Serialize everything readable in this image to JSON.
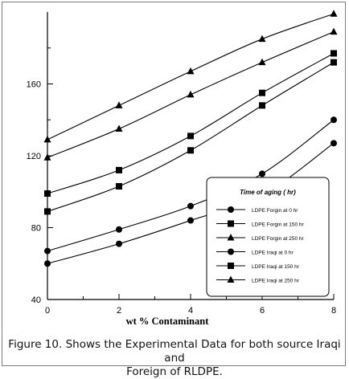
{
  "caption": {
    "line1": "Figure 10. Shows the Experimental Data for both source Iraqi and",
    "line2": "Foreign of RLDPE."
  },
  "chart_data": {
    "type": "line",
    "xlabel": "wt % Contaminant",
    "ylabel": "",
    "xlim": [
      0,
      8
    ],
    "ylim": [
      40,
      200
    ],
    "x_ticks": [
      0,
      2,
      4,
      6,
      8
    ],
    "x_tick_labels": [
      "0",
      "2",
      "4",
      "6",
      "8"
    ],
    "y_ticks": [
      40,
      80,
      120,
      160
    ],
    "y_tick_labels": [
      "40",
      "80",
      "120",
      "160"
    ],
    "grid": false,
    "legend": {
      "title": "Time of aging ( hr)",
      "placement": "center-right",
      "entries": [
        "LDPE Forgin at 0 hr",
        "LDPE Forgin at 150 hr",
        "LDPE Forgin at 250 hr",
        "LDPE Iraqi at 0 hr",
        "LDPE Iraqi at 150 hr",
        "LDPE Iraqi at 250 hr"
      ]
    },
    "x": [
      0,
      2,
      4,
      6,
      8
    ],
    "series": [
      {
        "name": "LDPE Forgin at 0 hr",
        "marker": "circle",
        "values": [
          67,
          79,
          92,
          110,
          140
        ]
      },
      {
        "name": "LDPE Forgin at 150 hr",
        "marker": "square",
        "values": [
          99,
          112,
          131,
          155,
          177
        ]
      },
      {
        "name": "LDPE Forgin at 250 hr",
        "marker": "triangle",
        "values": [
          129,
          148,
          167,
          185,
          199
        ]
      },
      {
        "name": "LDPE Iraqi at 0 hr",
        "marker": "circle",
        "values": [
          60,
          71,
          84,
          98,
          127
        ]
      },
      {
        "name": "LDPE Iraqi at 150 hr",
        "marker": "square",
        "values": [
          89,
          103,
          123,
          148,
          172
        ]
      },
      {
        "name": "LDPE Iraqi at 250 hr",
        "marker": "triangle",
        "values": [
          119,
          135,
          154,
          172,
          189
        ]
      }
    ],
    "colors": {
      "line": "#000000",
      "axis": "#000000"
    }
  }
}
